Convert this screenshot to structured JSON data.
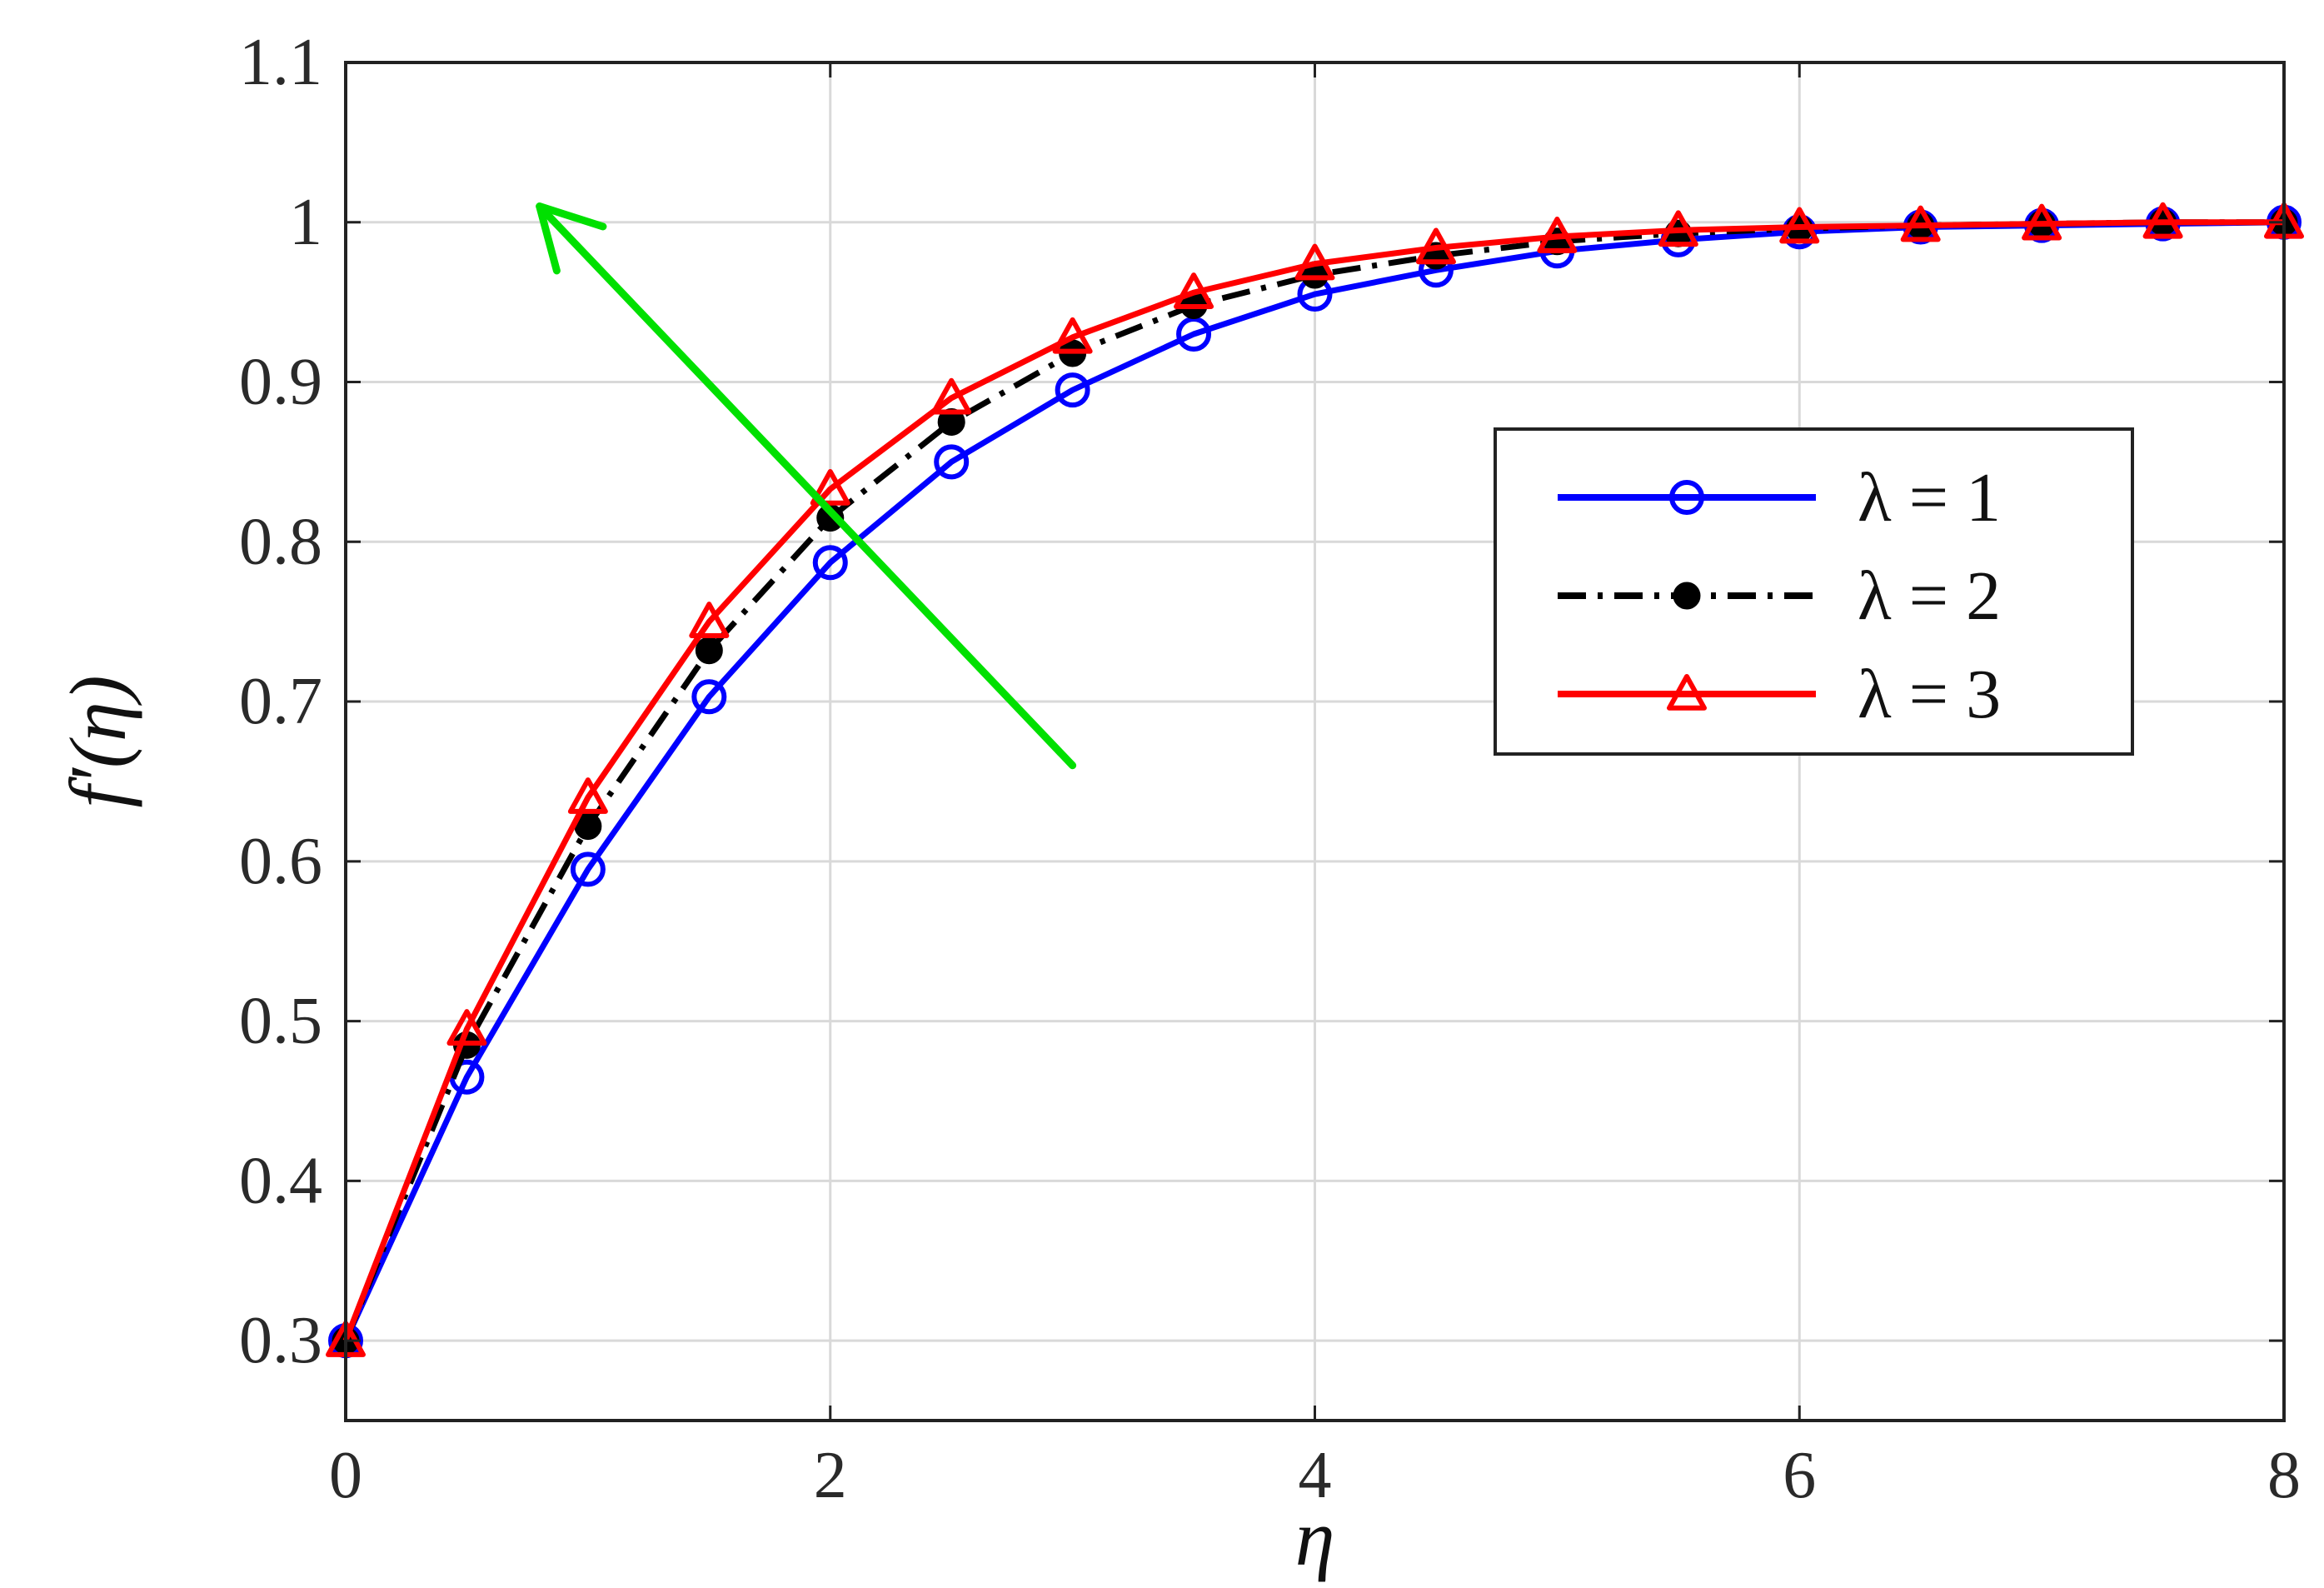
{
  "chart_data": {
    "type": "line",
    "xlabel": "η",
    "ylabel": "f′(η)",
    "xlim": [
      0,
      8
    ],
    "ylim": [
      0.25,
      1.1
    ],
    "xticks": [
      "0",
      "2",
      "4",
      "6",
      "8"
    ],
    "yticks": [
      "0.3",
      "0.4",
      "0.5",
      "0.6",
      "0.7",
      "0.8",
      "0.9",
      "1",
      "1.1"
    ],
    "grid": true,
    "legend_position": "right",
    "x": [
      0,
      0.5,
      1,
      1.5,
      2,
      2.5,
      3,
      3.5,
      4,
      4.5,
      5,
      5.5,
      6,
      6.5,
      7,
      7.5,
      8
    ],
    "series": [
      {
        "name": "λ = 1",
        "color": "#0000ff",
        "line_style": "solid",
        "marker": "circle",
        "values": [
          0.3,
          0.465,
          0.595,
          0.703,
          0.787,
          0.85,
          0.895,
          0.93,
          0.955,
          0.97,
          0.982,
          0.989,
          0.994,
          0.997,
          0.998,
          0.999,
          1.0
        ]
      },
      {
        "name": "λ = 2",
        "color": "#000000",
        "line_style": "dash-dot",
        "marker": "filled-circle",
        "values": [
          0.3,
          0.485,
          0.622,
          0.732,
          0.815,
          0.875,
          0.918,
          0.948,
          0.967,
          0.979,
          0.988,
          0.993,
          0.996,
          0.998,
          0.999,
          1.0,
          1.0
        ]
      },
      {
        "name": "λ = 3",
        "color": "#ff0000",
        "line_style": "solid",
        "marker": "triangle",
        "values": [
          0.3,
          0.495,
          0.64,
          0.75,
          0.833,
          0.89,
          0.928,
          0.956,
          0.974,
          0.984,
          0.991,
          0.995,
          0.997,
          0.998,
          0.999,
          1.0,
          1.0
        ]
      }
    ],
    "annotation": {
      "type": "arrow",
      "color": "#00e000",
      "from": [
        3.0,
        0.66
      ],
      "to": [
        0.8,
        1.01
      ]
    }
  }
}
